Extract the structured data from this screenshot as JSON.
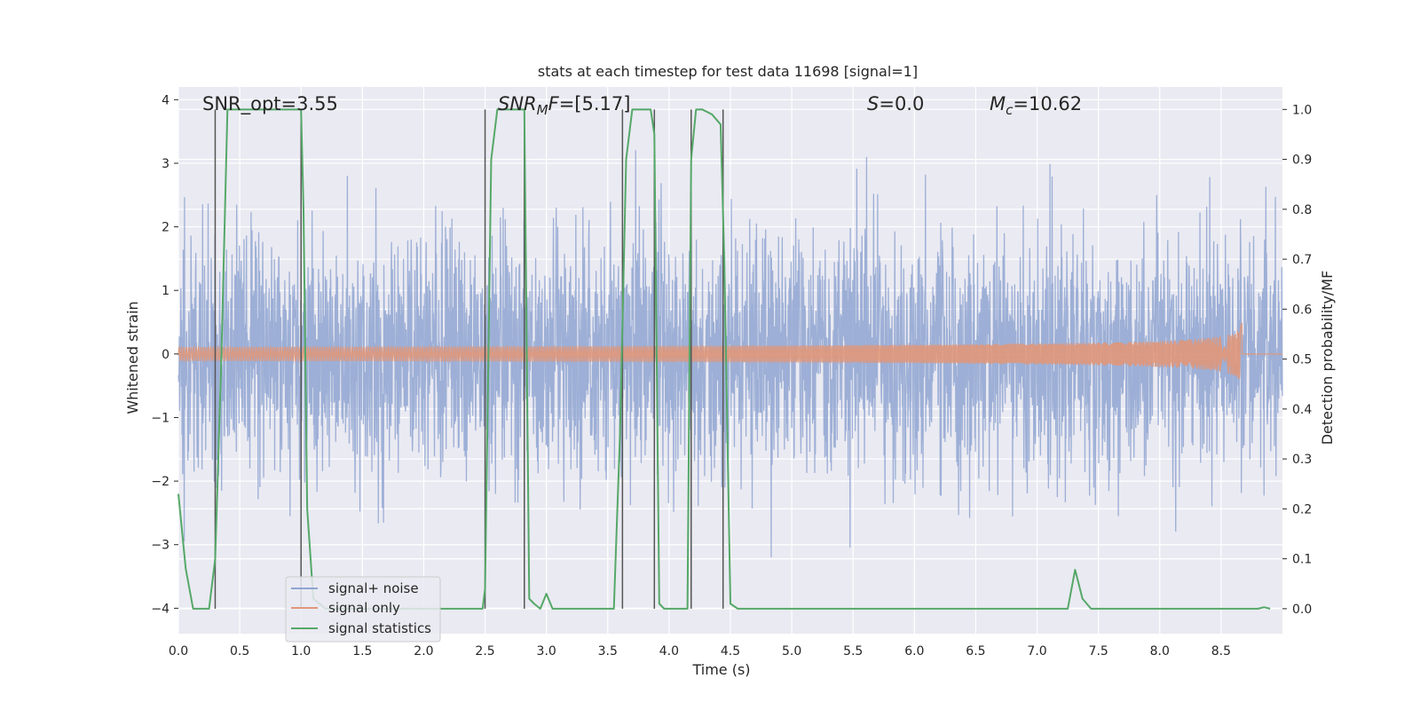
{
  "chart_data": {
    "type": "line",
    "title": "stats at each timestep for test data 11698 [signal=1]",
    "xlabel": "Time (s)",
    "ylabel_left": "Whitened strain",
    "ylabel_right": "Detection probability/MF",
    "xlim": [
      0.0,
      9.0
    ],
    "ylim_left": [
      -4.4,
      4.2
    ],
    "ylim_right": [
      -0.05,
      1.045
    ],
    "x_ticks": [
      "0.0",
      "0.5",
      "1.0",
      "1.5",
      "2.0",
      "2.5",
      "3.0",
      "3.5",
      "4.0",
      "4.5",
      "5.0",
      "5.5",
      "6.0",
      "6.5",
      "7.0",
      "7.5",
      "8.0",
      "8.5"
    ],
    "y_ticks_left": [
      "−4",
      "−3",
      "−2",
      "−1",
      "0",
      "1",
      "2",
      "3",
      "4"
    ],
    "y_ticks_right": [
      "0.0",
      "0.1",
      "0.2",
      "0.3",
      "0.4",
      "0.5",
      "0.6",
      "0.7",
      "0.8",
      "0.9",
      "1.0"
    ],
    "annotations": {
      "snr_opt": "SNR_opt=3.55",
      "snr_mf_main": "SNR",
      "snr_mf_sub": "M",
      "snr_mf_tail": "F",
      "snr_mf_value": "=[5.17]",
      "s_label": "S",
      "s_value": "=0.0",
      "mc_label": "M",
      "mc_sub": "c",
      "mc_value": "=10.62"
    },
    "vertical_markers": [
      0.3,
      1.0,
      2.5,
      2.82,
      3.62,
      3.88,
      4.18,
      4.44
    ],
    "series": [
      {
        "name": "signal+ noise",
        "axis": "left",
        "color": "#8fa5d1",
        "kind": "noise",
        "sigma": 0.95,
        "t_range": [
          0.0,
          9.0
        ]
      },
      {
        "name": "signal only",
        "axis": "left",
        "color": "#e0977a",
        "kind": "chirp",
        "t_merger": 8.67,
        "peak_amplitude": 0.5
      },
      {
        "name": "signal statistics",
        "axis": "right",
        "color": "#55a868",
        "x": [
          0.0,
          0.06,
          0.12,
          0.25,
          0.3,
          0.35,
          0.4,
          1.0,
          1.02,
          1.05,
          1.1,
          1.2,
          2.48,
          2.5,
          2.55,
          2.6,
          2.82,
          2.86,
          2.9,
          2.95,
          3.0,
          3.05,
          3.1,
          3.2,
          3.55,
          3.6,
          3.65,
          3.7,
          3.85,
          3.88,
          3.92,
          3.96,
          4.05,
          4.15,
          4.18,
          4.22,
          4.27,
          4.35,
          4.42,
          4.45,
          4.5,
          4.56,
          7.25,
          7.31,
          7.37,
          7.44,
          8.8,
          8.85,
          8.9
        ],
        "y": [
          0.23,
          0.08,
          0.0,
          0.0,
          0.1,
          0.5,
          1.0,
          1.0,
          0.8,
          0.2,
          0.02,
          0.0,
          0.0,
          0.04,
          0.9,
          1.0,
          1.0,
          0.02,
          0.01,
          0.0,
          0.03,
          0.0,
          0.0,
          0.0,
          0.0,
          0.35,
          0.9,
          1.0,
          1.0,
          0.95,
          0.01,
          0.0,
          0.0,
          0.0,
          0.9,
          1.0,
          1.0,
          0.99,
          0.97,
          0.7,
          0.01,
          0.0,
          0.0,
          0.078,
          0.02,
          0.0,
          0.0,
          0.003,
          0.0
        ]
      }
    ],
    "legend": {
      "position": "lower-left",
      "entries": [
        "signal+ noise",
        "signal only",
        "signal statistics"
      ]
    }
  }
}
